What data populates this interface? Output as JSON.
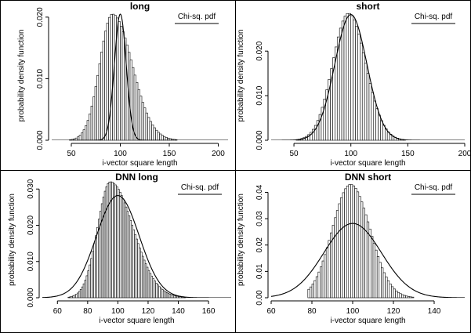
{
  "chart_data": [
    {
      "type": "bar",
      "title": "long",
      "xlabel": "i-vector square length",
      "ylabel": "probability density function",
      "legend": {
        "label": "Chi-sq. pdf",
        "placement": "top-right"
      },
      "xlim": [
        30,
        210
      ],
      "ylim": [
        0,
        0.021
      ],
      "xticks": [
        50,
        100,
        150,
        200
      ],
      "yticks": [
        0.0,
        0.01,
        0.02
      ],
      "ytick_labels": [
        "0.000",
        "0.010",
        "0.020"
      ],
      "histogram": {
        "mode": 92,
        "sigma_left": 13,
        "sigma_right": 20,
        "peak": 0.0205,
        "bin_width": 2,
        "range": [
          44,
          210
        ]
      },
      "series": [
        {
          "kind": "bars"
        },
        {
          "name": "Chi-sq. pdf",
          "kind": "line",
          "mean": 100,
          "sd": 6,
          "ymax": 0.0205,
          "clipped": true
        }
      ]
    },
    {
      "type": "bar",
      "title": "short",
      "xlabel": "i-vector square length",
      "ylabel": "probability density function",
      "legend": {
        "label": "Chi-sq. pdf",
        "placement": "top-right"
      },
      "xlim": [
        30,
        200
      ],
      "ylim": [
        0,
        0.029
      ],
      "xticks": [
        50,
        100,
        150,
        200
      ],
      "yticks": [
        0.0,
        0.01,
        0.02
      ],
      "ytick_labels": [
        "0.000",
        "0.010",
        "0.020"
      ],
      "histogram": {
        "mode": 98,
        "sigma_left": 14,
        "sigma_right": 15,
        "peak": 0.0285,
        "bin_width": 2,
        "range": [
          44,
          196
        ]
      },
      "series": [
        {
          "kind": "bars"
        },
        {
          "name": "Chi-sq. pdf",
          "kind": "line",
          "mean": 100,
          "sd": 14.1,
          "ymax": 0.0282,
          "clipped": false
        }
      ]
    },
    {
      "type": "bar",
      "title": "DNN long",
      "xlabel": "i-vector square length",
      "ylabel": "probability density function",
      "legend": {
        "label": "Chi-sq. pdf",
        "placement": "top-right"
      },
      "xlim": [
        50,
        175
      ],
      "ylim": [
        0,
        0.032
      ],
      "xticks": [
        60,
        80,
        100,
        120,
        140,
        160
      ],
      "yticks": [
        0.0,
        0.01,
        0.02,
        0.03
      ],
      "ytick_labels": [
        "0.000",
        "0.010",
        "0.020",
        "0.030"
      ],
      "histogram": {
        "mode": 95,
        "sigma_left": 8.5,
        "sigma_right": 15,
        "peak": 0.032,
        "bin_width": 1,
        "range": [
          58,
          172
        ]
      },
      "series": [
        {
          "kind": "bars"
        },
        {
          "name": "Chi-sq. pdf",
          "kind": "line",
          "mean": 100,
          "sd": 14.1,
          "ymax": 0.0282,
          "clipped": false
        }
      ]
    },
    {
      "type": "bar",
      "title": "DNN short",
      "xlabel": "i-vector square length",
      "ylabel": "probability density function",
      "legend": {
        "label": "Chi-sq. pdf",
        "placement": "top-right"
      },
      "xlim": [
        60,
        155
      ],
      "ylim": [
        0,
        0.044
      ],
      "xticks": [
        60,
        80,
        100,
        120,
        140
      ],
      "yticks": [
        0.0,
        0.01,
        0.02,
        0.03,
        0.04
      ],
      "ytick_labels": [
        "0.00",
        "0.01",
        "0.02",
        "0.03",
        "0.04"
      ],
      "histogram": {
        "mode": 99,
        "sigma_left": 9,
        "sigma_right": 9.5,
        "peak": 0.043,
        "bin_width": 1,
        "range": [
          78,
          130
        ]
      },
      "series": [
        {
          "kind": "bars"
        },
        {
          "name": "Chi-sq. pdf",
          "kind": "line",
          "mean": 100,
          "sd": 14.1,
          "ymax": 0.0282,
          "clipped": false
        }
      ]
    }
  ]
}
